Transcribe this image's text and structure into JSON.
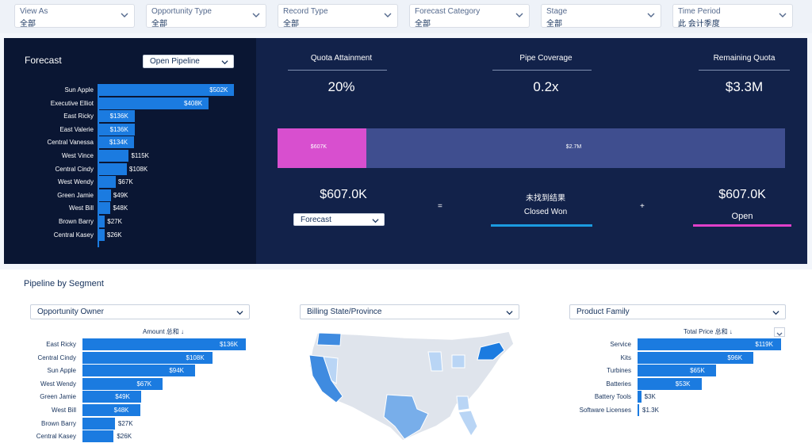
{
  "filters": [
    {
      "label": "View As",
      "value": "全部"
    },
    {
      "label": "Opportunity Type",
      "value": "全部"
    },
    {
      "label": "Record Type",
      "value": "全部"
    },
    {
      "label": "Forecast Category",
      "value": "全部"
    },
    {
      "label": "Stage",
      "value": "全部"
    },
    {
      "label": "Time Period",
      "value": "此 会计季度"
    }
  ],
  "forecast": {
    "title": "Forecast",
    "dropdown": "Open Pipeline",
    "chart_data": {
      "type": "bar",
      "categories": [
        "Sun Apple",
        "Executive Elliot",
        "East Ricky",
        "East Valerie",
        "Central Vanessa",
        "West Vince",
        "Central Cindy",
        "West Wendy",
        "Green Jamie",
        "West Bill",
        "Brown Barry",
        "Central Kasey"
      ],
      "values": [
        502,
        408,
        136,
        136,
        134,
        115,
        108,
        67,
        49,
        48,
        27,
        26
      ],
      "labels": [
        "$502K",
        "$408K",
        "$136K",
        "$136K",
        "$134K",
        "$115K",
        "$108K",
        "$67K",
        "$49K",
        "$48K",
        "$27K",
        "$26K"
      ],
      "xlim": [
        0,
        510
      ]
    }
  },
  "metrics": {
    "quota_label": "Quota Attainment",
    "quota_value": "20%",
    "coverage_label": "Pipe Coverage",
    "coverage_value": "0.2x",
    "remaining_label": "Remaining Quota",
    "remaining_value": "$3.3M",
    "stack": {
      "won_value": 607,
      "open_value": 2700,
      "won_label": "$607K",
      "open_label": "$2.7M"
    },
    "total": "$607.0K",
    "total_dropdown": "Forecast",
    "equals": "=",
    "plus": "+",
    "not_found": "未找到结果",
    "closed_won": "Closed Won",
    "open_value": "$607.0K",
    "open_label": "Open",
    "colors": {
      "won": "#d84fcf",
      "open": "#3f4e8f",
      "closed_won_line": "#1b9be0",
      "open_line": "#e040c9"
    }
  },
  "pipeline": {
    "title": "Pipeline by Segment",
    "owner": {
      "dropdown": "Opportunity Owner",
      "header": "Amount 总和 ↓",
      "chart_data": {
        "type": "bar",
        "categories": [
          "East Ricky",
          "Central Cindy",
          "Sun Apple",
          "West Wendy",
          "Green Jamie",
          "West Bill",
          "Brown Barry",
          "Central Kasey"
        ],
        "values": [
          136,
          108,
          94,
          67,
          49,
          48,
          27,
          26
        ],
        "labels": [
          "$136K",
          "$108K",
          "$94K",
          "$67K",
          "$49K",
          "$48K",
          "$27K",
          "$26K"
        ],
        "xlim": [
          0,
          140
        ]
      }
    },
    "state": {
      "dropdown": "Billing State/Province"
    },
    "product": {
      "dropdown": "Product Family",
      "header": "Total Price 总和 ↓",
      "chart_data": {
        "type": "bar",
        "categories": [
          "Service",
          "Kits",
          "Turbines",
          "Batteries",
          "Battery Tools",
          "Software Licenses"
        ],
        "values": [
          119,
          96,
          65,
          53,
          3,
          1.3
        ],
        "labels": [
          "$119K",
          "$96K",
          "$65K",
          "$53K",
          "$3K",
          "$1.3K"
        ],
        "xlim": [
          0,
          122
        ]
      }
    }
  }
}
